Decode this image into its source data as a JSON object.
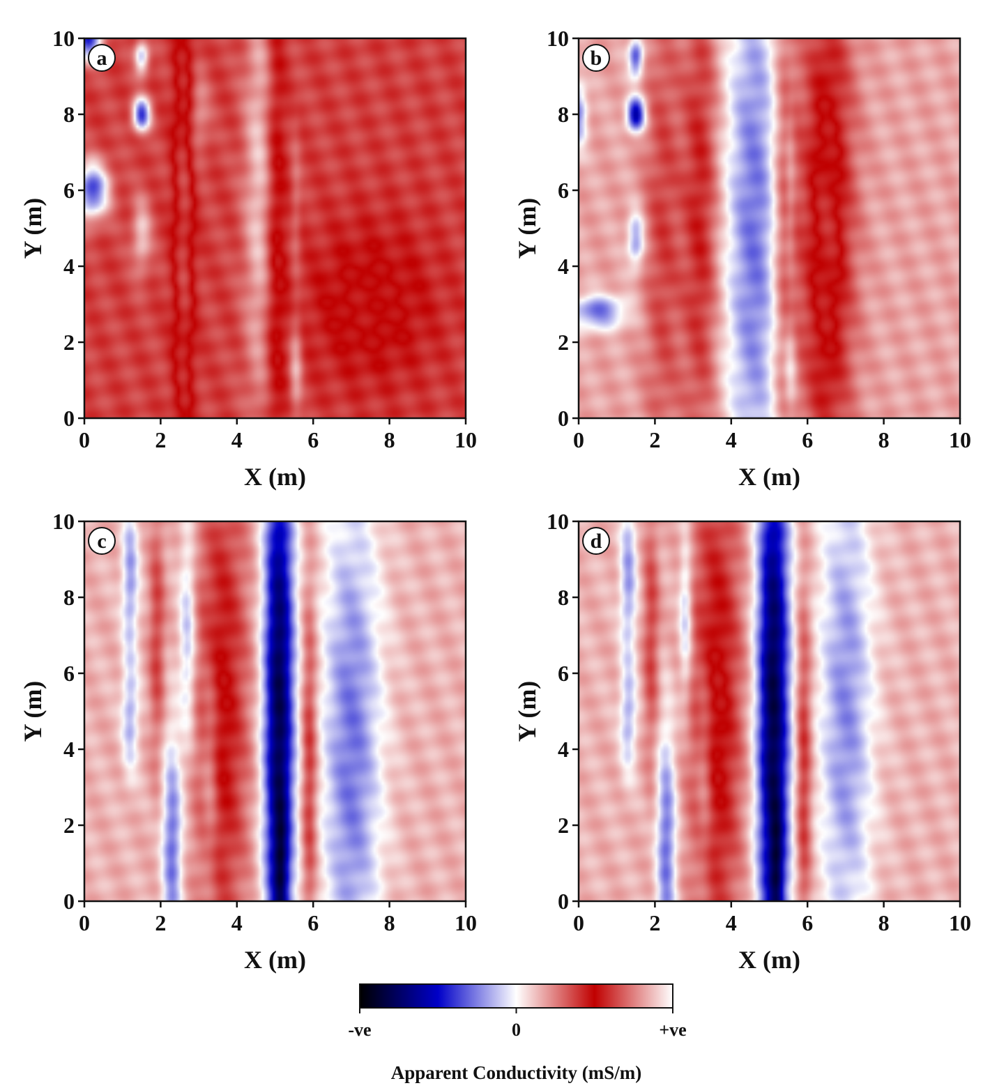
{
  "chart_data": [
    {
      "type": "heatmap",
      "panel_label": "a",
      "xlabel": "X (m)",
      "ylabel": "Y (m)",
      "xlim": [
        0,
        10
      ],
      "ylim": [
        0,
        10
      ],
      "xticks": [
        "0",
        "2",
        "4",
        "6",
        "8",
        "10"
      ],
      "yticks": [
        "0",
        "2",
        "4",
        "6",
        "8",
        "10"
      ],
      "features": [
        {
          "x": 0.1,
          "y": 10.0,
          "sx": 0.25,
          "sy": 0.4,
          "amp": -1.6
        },
        {
          "x": 0.2,
          "y": 6.0,
          "sx": 0.3,
          "sy": 0.5,
          "amp": -1.5
        },
        {
          "x": 1.5,
          "y": 8.0,
          "sx": 0.16,
          "sy": 0.3,
          "amp": -1.6
        },
        {
          "x": 1.5,
          "y": 9.5,
          "sx": 0.13,
          "sy": 0.3,
          "amp": -1.0
        },
        {
          "x": 1.5,
          "y": 4.8,
          "sx": 0.18,
          "sy": 0.7,
          "amp": -0.55
        },
        {
          "x": 4.6,
          "y": 6.0,
          "sx": 0.3,
          "sy": 4.5,
          "amp": -0.55
        },
        {
          "x": 3.0,
          "y": 8.0,
          "sx": 0.2,
          "sy": 0.8,
          "amp": -0.35
        },
        {
          "x": 5.55,
          "y": 1.3,
          "sx": 0.12,
          "sy": 0.9,
          "amp": -0.45
        },
        {
          "x": 5.55,
          "y": 5.5,
          "sx": 0.1,
          "sy": 1.6,
          "amp": -0.2
        },
        {
          "x": 2.6,
          "y": 5.0,
          "sx": 0.2,
          "sy": 5.0,
          "amp": 0.5
        },
        {
          "x": 5.0,
          "y": 5.0,
          "sx": 0.2,
          "sy": 5.0,
          "amp": 0.4
        },
        {
          "x": 7.5,
          "y": 3.0,
          "sx": 1.2,
          "sy": 1.5,
          "amp": 0.3
        }
      ],
      "base": 0.75
    },
    {
      "type": "heatmap",
      "panel_label": "b",
      "xlabel": "X (m)",
      "ylabel": "Y (m)",
      "xlim": [
        0,
        10
      ],
      "ylim": [
        0,
        10
      ],
      "xticks": [
        "0",
        "2",
        "4",
        "6",
        "8",
        "10"
      ],
      "yticks": [
        "0",
        "2",
        "4",
        "6",
        "8",
        "10"
      ],
      "features": [
        {
          "x": 4.6,
          "y": 5.0,
          "sx": 0.55,
          "sy": 6.0,
          "amp": -0.9
        },
        {
          "x": 1.5,
          "y": 8.0,
          "sx": 0.16,
          "sy": 0.3,
          "amp": -1.6
        },
        {
          "x": 1.5,
          "y": 9.5,
          "sx": 0.13,
          "sy": 0.35,
          "amp": -1.1
        },
        {
          "x": 1.5,
          "y": 4.7,
          "sx": 0.15,
          "sy": 0.5,
          "amp": -0.8
        },
        {
          "x": 0.5,
          "y": 2.8,
          "sx": 0.5,
          "sy": 0.3,
          "amp": -0.95
        },
        {
          "x": 0.0,
          "y": 8.0,
          "sx": 0.15,
          "sy": 0.6,
          "amp": -0.8
        },
        {
          "x": 3.2,
          "y": 5.5,
          "sx": 0.35,
          "sy": 5.0,
          "amp": 0.55
        },
        {
          "x": 5.4,
          "y": 5.0,
          "sx": 0.25,
          "sy": 5.0,
          "amp": 0.55
        },
        {
          "x": 6.5,
          "y": 5.0,
          "sx": 0.5,
          "sy": 5.0,
          "amp": 0.8
        },
        {
          "x": 2.2,
          "y": 5.0,
          "sx": 0.35,
          "sy": 5.0,
          "amp": 0.4
        },
        {
          "x": 5.55,
          "y": 1.3,
          "sx": 0.12,
          "sy": 0.9,
          "amp": -0.45
        },
        {
          "x": 5.55,
          "y": 6.0,
          "sx": 0.1,
          "sy": 1.8,
          "amp": -0.3
        }
      ],
      "base": 0.35
    },
    {
      "type": "heatmap",
      "panel_label": "c",
      "xlabel": "X (m)",
      "ylabel": "Y (m)",
      "xlim": [
        0,
        10
      ],
      "ylim": [
        0,
        10
      ],
      "xticks": [
        "0",
        "2",
        "4",
        "6",
        "8",
        "10"
      ],
      "yticks": [
        "0",
        "2",
        "4",
        "6",
        "8",
        "10"
      ],
      "features": [
        {
          "x": 5.1,
          "y": 5.0,
          "sx": 0.28,
          "sy": 6.0,
          "amp": -1.9
        },
        {
          "x": 5.15,
          "y": 0.8,
          "sx": 0.12,
          "sy": 1.2,
          "amp": -0.6
        },
        {
          "x": 7.0,
          "y": 4.0,
          "sx": 0.55,
          "sy": 5.0,
          "amp": -0.85
        },
        {
          "x": 2.3,
          "y": 1.5,
          "sx": 0.18,
          "sy": 2.0,
          "amp": -0.9
        },
        {
          "x": 2.7,
          "y": 7.0,
          "sx": 0.15,
          "sy": 2.0,
          "amp": -0.6
        },
        {
          "x": 1.2,
          "y": 8.5,
          "sx": 0.15,
          "sy": 1.5,
          "amp": -0.7
        },
        {
          "x": 1.2,
          "y": 4.8,
          "sx": 0.15,
          "sy": 1.0,
          "amp": -0.6
        },
        {
          "x": 3.6,
          "y": 5.0,
          "sx": 0.5,
          "sy": 5.0,
          "amp": 0.7
        },
        {
          "x": 1.9,
          "y": 7.0,
          "sx": 0.15,
          "sy": 2.5,
          "amp": 0.45
        },
        {
          "x": 5.9,
          "y": 3.5,
          "sx": 0.15,
          "sy": 3.5,
          "amp": 0.6
        },
        {
          "x": 3.3,
          "y": 3.5,
          "sx": 0.15,
          "sy": 2.0,
          "amp": -0.35
        }
      ],
      "base": 0.3
    },
    {
      "type": "heatmap",
      "panel_label": "d",
      "xlabel": "X (m)",
      "ylabel": "Y (m)",
      "xlim": [
        0,
        10
      ],
      "ylim": [
        0,
        10
      ],
      "xticks": [
        "0",
        "2",
        "4",
        "6",
        "8",
        "10"
      ],
      "yticks": [
        "0",
        "2",
        "4",
        "6",
        "8",
        "10"
      ],
      "features": [
        {
          "x": 5.1,
          "y": 5.0,
          "sx": 0.3,
          "sy": 6.0,
          "amp": -1.95
        },
        {
          "x": 5.2,
          "y": 0.8,
          "sx": 0.12,
          "sy": 1.2,
          "amp": -0.6
        },
        {
          "x": 7.0,
          "y": 5.0,
          "sx": 0.5,
          "sy": 5.0,
          "amp": -0.75
        },
        {
          "x": 2.3,
          "y": 1.5,
          "sx": 0.18,
          "sy": 2.2,
          "amp": -0.9
        },
        {
          "x": 2.8,
          "y": 7.5,
          "sx": 0.12,
          "sy": 1.5,
          "amp": -0.6
        },
        {
          "x": 1.3,
          "y": 8.5,
          "sx": 0.15,
          "sy": 1.5,
          "amp": -0.7
        },
        {
          "x": 1.3,
          "y": 4.8,
          "sx": 0.15,
          "sy": 1.0,
          "amp": -0.6
        },
        {
          "x": 3.6,
          "y": 5.0,
          "sx": 0.5,
          "sy": 5.0,
          "amp": 0.75
        },
        {
          "x": 1.9,
          "y": 7.0,
          "sx": 0.15,
          "sy": 2.5,
          "amp": 0.45
        },
        {
          "x": 5.9,
          "y": 3.5,
          "sx": 0.15,
          "sy": 3.5,
          "amp": 0.6
        },
        {
          "x": 3.3,
          "y": 3.5,
          "sx": 0.15,
          "sy": 2.0,
          "amp": -0.35
        }
      ],
      "base": 0.3
    }
  ],
  "colorbar": {
    "title": "Apparent Conductivity (mS/m)",
    "min_label": "-ve",
    "zero_label": "0",
    "max_label": "+ve",
    "colors": [
      "#000000",
      "#0000c8",
      "#ffffff",
      "#c00000",
      "#ffffff"
    ]
  }
}
